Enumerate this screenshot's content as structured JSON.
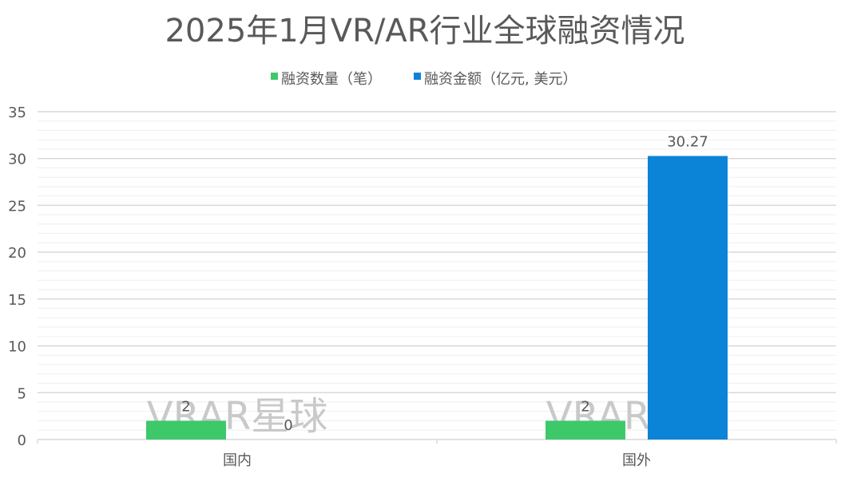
{
  "chart_data": {
    "type": "bar",
    "title": "2025年1月VR/AR行业全球融资情况",
    "categories": [
      "国内",
      "国外"
    ],
    "series": [
      {
        "name": "融资数量（笔）",
        "values": [
          2,
          2
        ],
        "color": "#3dc86a"
      },
      {
        "name": "融资金额（亿元, 美元）",
        "values": [
          0,
          30.27
        ],
        "color": "#0b84d8"
      }
    ],
    "data_labels": [
      [
        "2",
        "0"
      ],
      [
        "2",
        "30.27"
      ]
    ],
    "ylim": [
      0,
      35
    ],
    "yticks": [
      0,
      5,
      10,
      15,
      20,
      25,
      30,
      35
    ],
    "ytick_labels": [
      "0",
      "5",
      "10",
      "15",
      "20",
      "25",
      "30",
      "35"
    ],
    "minor_gridlines": true,
    "legend_position": "top-center",
    "xlabel": "",
    "ylabel": ""
  },
  "watermark": {
    "text": "VRAR星球",
    "color": "#bfbfbf"
  },
  "colors": {
    "axis": "#d9d9d9",
    "grid_major": "#d9d9d9",
    "grid_minor": "#efefef",
    "text": "#595959"
  }
}
